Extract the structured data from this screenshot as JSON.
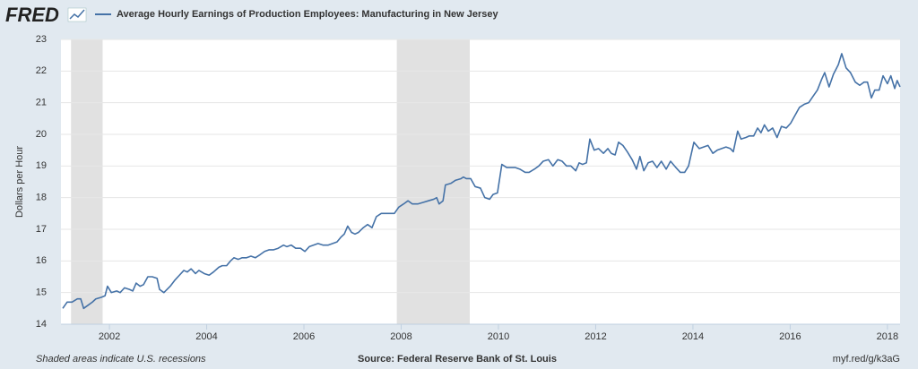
{
  "brand": "FRED",
  "chart_data": {
    "type": "line",
    "y_label": "Dollars per Hour",
    "note": "Shaded areas indicate U.S. recessions",
    "source": "Source: Federal Reserve Bank of St. Louis",
    "url": "myf.red/g/k3aG",
    "xlim": [
      2001.04,
      2018.26
    ],
    "xticks": [
      2002,
      2004,
      2006,
      2008,
      2010,
      2012,
      2014,
      2016,
      2018
    ],
    "ylim": [
      14,
      23
    ],
    "yticks": [
      14,
      15,
      16,
      17,
      18,
      19,
      20,
      21,
      22,
      23
    ],
    "grid": true,
    "recessions": [
      [
        2001.21,
        2001.86
      ],
      [
        2007.91,
        2009.41
      ]
    ],
    "recession_color": "#e1e1e1",
    "x": [
      2001.04,
      2001.13,
      2001.23,
      2001.34,
      2001.41,
      2001.47,
      2001.56,
      2001.65,
      2001.72,
      2001.83,
      2001.91,
      2001.96,
      2002.04,
      2002.15,
      2002.22,
      2002.31,
      2002.41,
      2002.48,
      2002.55,
      2002.63,
      2002.7,
      2002.79,
      2002.88,
      2002.98,
      2003.03,
      2003.12,
      2003.25,
      2003.35,
      2003.44,
      2003.53,
      2003.6,
      2003.68,
      2003.77,
      2003.84,
      2003.95,
      2004.05,
      2004.14,
      2004.25,
      2004.32,
      2004.41,
      2004.49,
      2004.56,
      2004.65,
      2004.73,
      2004.82,
      2004.91,
      2005.0,
      2005.1,
      2005.19,
      2005.28,
      2005.37,
      2005.47,
      2005.58,
      2005.65,
      2005.74,
      2005.83,
      2005.93,
      2006.02,
      2006.11,
      2006.2,
      2006.29,
      2006.39,
      2006.5,
      2006.59,
      2006.68,
      2006.76,
      2006.83,
      2006.9,
      2006.98,
      2007.05,
      2007.12,
      2007.22,
      2007.31,
      2007.4,
      2007.49,
      2007.59,
      2007.68,
      2007.77,
      2007.86,
      2007.95,
      2008.05,
      2008.14,
      2008.23,
      2008.34,
      2008.45,
      2008.56,
      2008.67,
      2008.73,
      2008.78,
      2008.86,
      2008.91,
      2009.02,
      2009.12,
      2009.23,
      2009.28,
      2009.34,
      2009.43,
      2009.52,
      2009.63,
      2009.72,
      2009.82,
      2009.89,
      2009.98,
      2010.07,
      2010.17,
      2010.26,
      2010.35,
      2010.44,
      2010.55,
      2010.63,
      2010.74,
      2010.83,
      2010.92,
      2011.03,
      2011.12,
      2011.22,
      2011.31,
      2011.4,
      2011.49,
      2011.59,
      2011.66,
      2011.73,
      2011.81,
      2011.88,
      2011.97,
      2012.06,
      2012.16,
      2012.25,
      2012.32,
      2012.4,
      2012.47,
      2012.56,
      2012.65,
      2012.75,
      2012.84,
      2012.91,
      2012.99,
      2013.08,
      2013.17,
      2013.26,
      2013.35,
      2013.45,
      2013.54,
      2013.65,
      2013.74,
      2013.83,
      2013.91,
      2014.02,
      2014.13,
      2014.22,
      2014.31,
      2014.41,
      2014.5,
      2014.59,
      2014.68,
      2014.77,
      2014.83,
      2014.92,
      2014.99,
      2015.09,
      2015.16,
      2015.25,
      2015.33,
      2015.4,
      2015.47,
      2015.55,
      2015.64,
      2015.73,
      2015.82,
      2015.92,
      2016.01,
      2016.1,
      2016.19,
      2016.29,
      2016.38,
      2016.47,
      2016.56,
      2016.65,
      2016.71,
      2016.8,
      2016.89,
      2016.99,
      2017.06,
      2017.15,
      2017.24,
      2017.34,
      2017.43,
      2017.52,
      2017.59,
      2017.67,
      2017.74,
      2017.83,
      2017.91,
      2018.0,
      2018.07,
      2018.15,
      2018.2,
      2018.26
    ],
    "series": [
      {
        "name": "Average Hourly Earnings of Production Employees: Manufacturing in New Jersey",
        "color": "#4572a7",
        "values": [
          14.5,
          14.7,
          14.7,
          14.8,
          14.8,
          14.5,
          14.6,
          14.7,
          14.8,
          14.85,
          14.9,
          15.2,
          15.0,
          15.05,
          15.0,
          15.15,
          15.1,
          15.05,
          15.3,
          15.2,
          15.25,
          15.5,
          15.5,
          15.45,
          15.1,
          15.0,
          15.2,
          15.4,
          15.55,
          15.7,
          15.65,
          15.75,
          15.6,
          15.7,
          15.6,
          15.55,
          15.65,
          15.8,
          15.85,
          15.85,
          16.0,
          16.1,
          16.05,
          16.1,
          16.1,
          16.15,
          16.1,
          16.2,
          16.3,
          16.35,
          16.35,
          16.4,
          16.5,
          16.45,
          16.5,
          16.4,
          16.4,
          16.3,
          16.45,
          16.5,
          16.55,
          16.5,
          16.5,
          16.55,
          16.6,
          16.75,
          16.85,
          17.1,
          16.9,
          16.85,
          16.9,
          17.05,
          17.15,
          17.05,
          17.4,
          17.5,
          17.5,
          17.5,
          17.5,
          17.7,
          17.8,
          17.9,
          17.8,
          17.8,
          17.85,
          17.9,
          17.95,
          18.0,
          17.8,
          17.9,
          18.4,
          18.45,
          18.55,
          18.6,
          18.65,
          18.6,
          18.6,
          18.35,
          18.3,
          18.0,
          17.95,
          18.1,
          18.15,
          19.05,
          18.95,
          18.95,
          18.95,
          18.9,
          18.8,
          18.8,
          18.9,
          19.0,
          19.15,
          19.2,
          19.0,
          19.2,
          19.15,
          19.0,
          19.0,
          18.85,
          19.1,
          19.05,
          19.1,
          19.85,
          19.5,
          19.55,
          19.4,
          19.55,
          19.4,
          19.35,
          19.75,
          19.65,
          19.45,
          19.2,
          18.9,
          19.3,
          18.85,
          19.1,
          19.15,
          18.95,
          19.15,
          18.9,
          19.15,
          18.95,
          18.8,
          18.8,
          19.0,
          19.75,
          19.55,
          19.6,
          19.65,
          19.4,
          19.5,
          19.55,
          19.6,
          19.55,
          19.45,
          20.1,
          19.85,
          19.9,
          19.95,
          19.95,
          20.2,
          20.05,
          20.3,
          20.1,
          20.2,
          19.9,
          20.25,
          20.2,
          20.35,
          20.6,
          20.85,
          20.95,
          21.0,
          21.2,
          21.4,
          21.75,
          21.95,
          21.5,
          21.9,
          22.2,
          22.55,
          22.1,
          21.95,
          21.65,
          21.55,
          21.65,
          21.65,
          21.15,
          21.4,
          21.4,
          21.85,
          21.6,
          21.85,
          21.45,
          21.7,
          21.5
        ]
      }
    ]
  }
}
